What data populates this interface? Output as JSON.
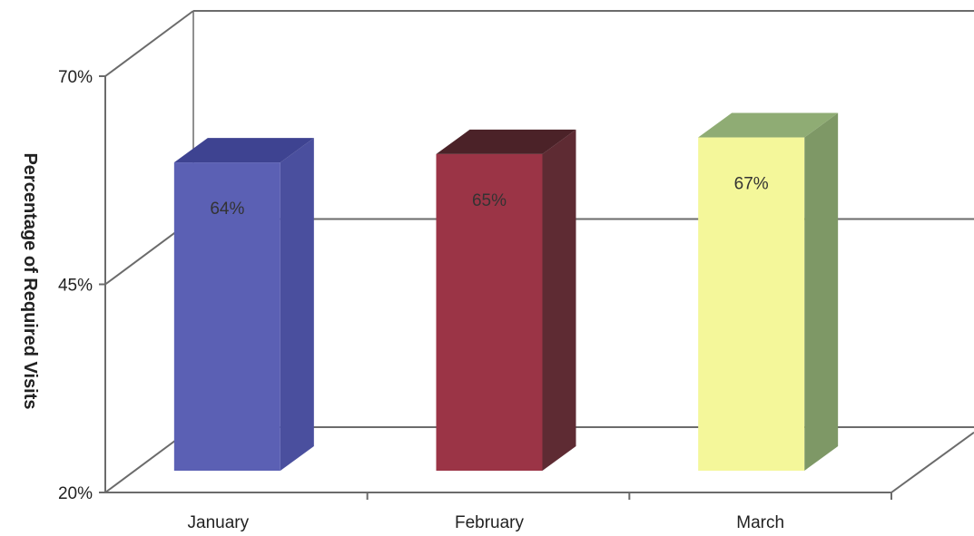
{
  "chart_data": {
    "type": "bar",
    "categories": [
      "January",
      "February",
      "March"
    ],
    "values": [
      64,
      65,
      67
    ],
    "data_labels": [
      "64%",
      "65%",
      "67%"
    ],
    "ylabel": "Percentage of Required Visits",
    "ylim": [
      20,
      70
    ],
    "y_ticks": [
      20,
      45,
      70
    ],
    "y_tick_labels": [
      "20%",
      "45%",
      "70%"
    ],
    "grid": true,
    "style": "3d",
    "colors": {
      "January": {
        "front": "#5b60b4",
        "side": "#4a4f9e",
        "top": "#3e4391"
      },
      "February": {
        "front": "#9b3446",
        "side": "#5e2b33",
        "top": "#4b2228"
      },
      "March": {
        "front": "#f4f79a",
        "side": "#7e9866",
        "top": "#8fac74"
      }
    },
    "label_colors": {
      "January": "#2e2e4a",
      "February": "#3a1a20",
      "March": "#333333"
    }
  }
}
